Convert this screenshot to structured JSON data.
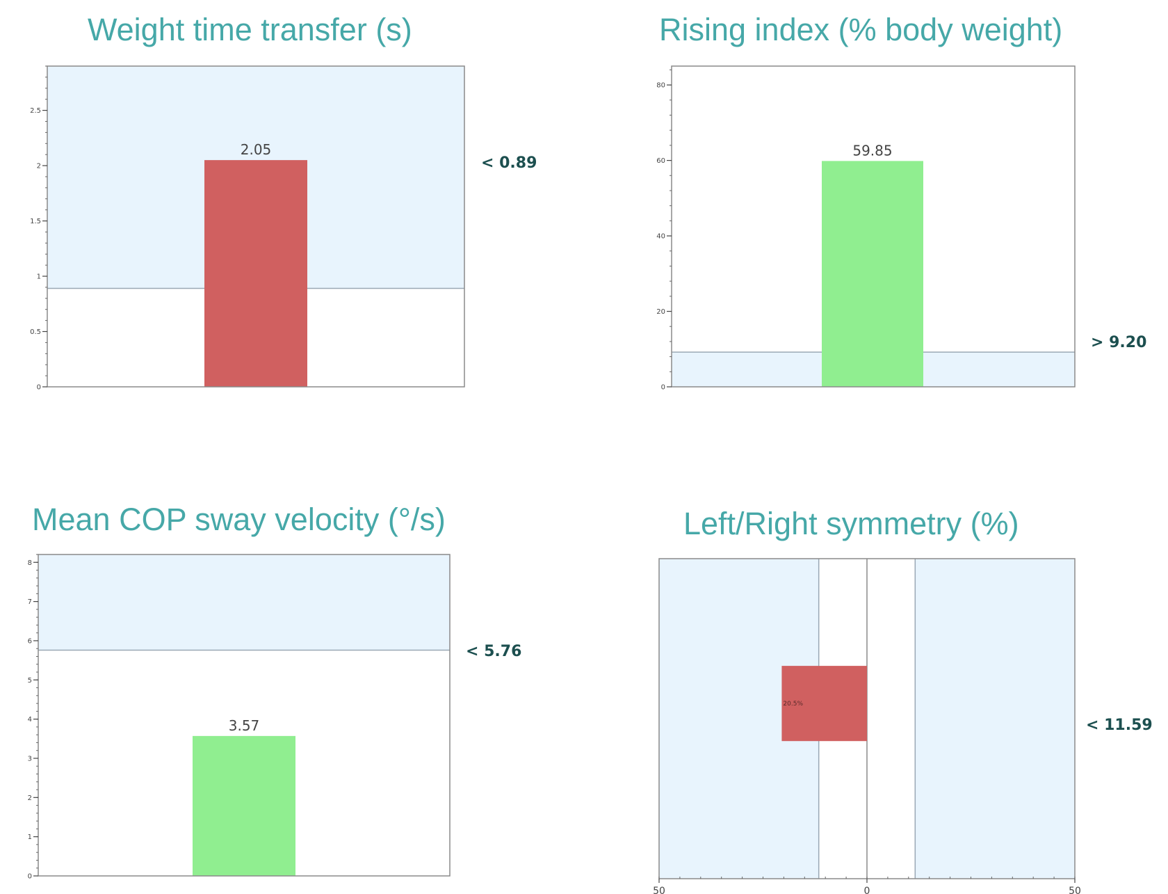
{
  "chart_data": [
    {
      "type": "bar",
      "title": "Weight time transfer (s)",
      "values": [
        2.05
      ],
      "value_labels": [
        "2.05"
      ],
      "ylim": [
        0,
        2.9
      ],
      "yticks": [
        0,
        0.5,
        1,
        1.5,
        2,
        2.5
      ],
      "ytick_labels": [
        "0",
        "0.5",
        "1",
        "1.5",
        "2",
        "2.5"
      ],
      "threshold": 0.89,
      "threshold_label": "< 0.89",
      "normal_band": [
        0.89,
        2.9
      ],
      "bar_color": "#d06060",
      "band_color": "#e8f4fd"
    },
    {
      "type": "bar",
      "title": "Rising index (% body weight)",
      "values": [
        59.85
      ],
      "value_labels": [
        "59.85"
      ],
      "ylim": [
        0,
        85
      ],
      "yticks": [
        0,
        20,
        40,
        60,
        80
      ],
      "ytick_labels": [
        "0",
        "20",
        "40",
        "60",
        "80"
      ],
      "threshold": 9.2,
      "threshold_label": "> 9.20",
      "normal_band": [
        0,
        9.2
      ],
      "bar_color": "#90ee90",
      "band_color": "#e8f4fd"
    },
    {
      "type": "bar",
      "title": "Mean COP sway velocity (°/s)",
      "values": [
        3.57
      ],
      "value_labels": [
        "3.57"
      ],
      "ylim": [
        0,
        8.2
      ],
      "yticks": [
        0,
        1,
        2,
        3,
        4,
        5,
        6,
        7,
        8
      ],
      "ytick_labels": [
        "0",
        "1",
        "2",
        "3",
        "4",
        "5",
        "6",
        "7",
        "8"
      ],
      "threshold": 5.76,
      "threshold_label": "< 5.76",
      "normal_band": [
        5.76,
        8.2
      ],
      "bar_color": "#90ee90",
      "band_color": "#e8f4fd"
    },
    {
      "type": "bar",
      "orientation": "horizontal",
      "title": "Left/Right symmetry (%)",
      "values": [
        -20.5
      ],
      "value_labels": [
        "20.5%"
      ],
      "xlim": [
        -50,
        50
      ],
      "xticks": [
        -50,
        0,
        50
      ],
      "xtick_labels": [
        "50",
        "0",
        "50"
      ],
      "threshold": 11.59,
      "threshold_label": "< 11.59",
      "normal_band": [
        -11.59,
        11.59
      ],
      "bar_color": "#d06060",
      "band_color": "#e8f4fd"
    }
  ]
}
